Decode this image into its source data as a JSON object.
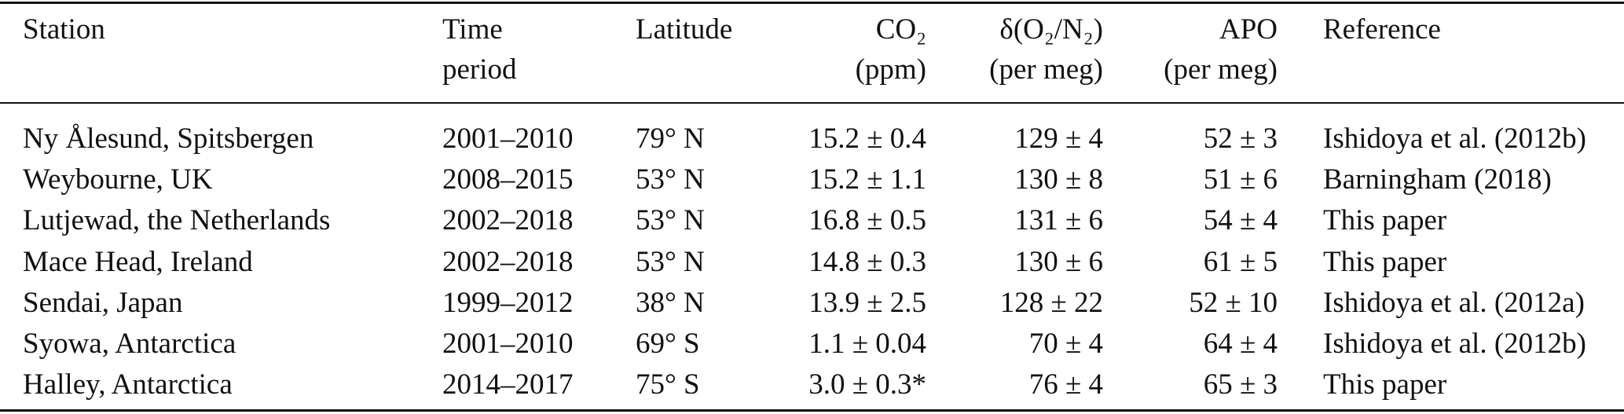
{
  "table": {
    "headers": {
      "station": "Station",
      "time_line1": "Time",
      "time_line2": "period",
      "latitude": "Latitude",
      "co2_line1": "CO₂",
      "co2_line2": "(ppm)",
      "o2n2_line1": "δ(O₂/N₂)",
      "o2n2_line2": "(per meg)",
      "apo_line1": "APO",
      "apo_line2": "(per meg)",
      "reference": "Reference"
    },
    "rows": [
      {
        "station": "Ny Ålesund, Spitsbergen",
        "time": "2001–2010",
        "lat": "79° N",
        "co2": "15.2 ± 0.4",
        "o2n2": "129 ± 4",
        "apo": "52 ± 3",
        "ref": "Ishidoya et al. (2012b)"
      },
      {
        "station": "Weybourne, UK",
        "time": "2008–2015",
        "lat": "53° N",
        "co2": "15.2 ± 1.1",
        "o2n2": "130 ± 8",
        "apo": "51 ± 6",
        "ref": "Barningham (2018)"
      },
      {
        "station": "Lutjewad, the Netherlands",
        "time": "2002–2018",
        "lat": "53° N",
        "co2": "16.8 ± 0.5",
        "o2n2": "131 ± 6",
        "apo": "54 ± 4",
        "ref": "This paper"
      },
      {
        "station": "Mace Head, Ireland",
        "time": "2002–2018",
        "lat": "53° N",
        "co2": "14.8 ± 0.3",
        "o2n2": "130 ± 6",
        "apo": "61 ± 5",
        "ref": "This paper"
      },
      {
        "station": "Sendai, Japan",
        "time": "1999–2012",
        "lat": "38° N",
        "co2": "13.9 ± 2.5",
        "o2n2": "128 ± 22",
        "apo": "52 ± 10",
        "ref": "Ishidoya et al. (2012a)"
      },
      {
        "station": "Syowa, Antarctica",
        "time": "2001–2010",
        "lat": "69° S",
        "co2": "1.1 ± 0.04",
        "o2n2": "70 ± 4",
        "apo": "64 ± 4",
        "ref": "Ishidoya et al. (2012b)"
      },
      {
        "station": "Halley, Antarctica",
        "time": "2014–2017",
        "lat": "75° S",
        "co2": "3.0 ± 0.3*",
        "o2n2": "76 ± 4",
        "apo": "65 ± 3",
        "ref": "This paper"
      }
    ]
  }
}
